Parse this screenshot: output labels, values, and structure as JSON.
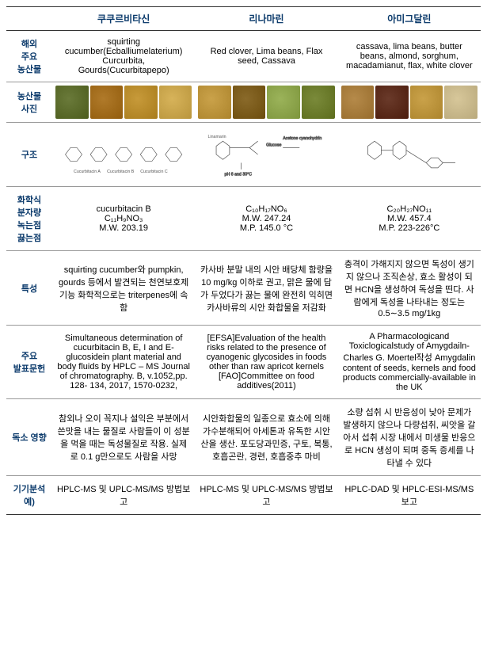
{
  "headers": [
    "",
    "쿠쿠르비타신",
    "리나마린",
    "아미그달린"
  ],
  "row_labels": {
    "overseas": "해외\n주요\n농산물",
    "photo": "농산물\n사진",
    "structure": "구조",
    "chem": "화학식\n분자량\n녹는점\n끓는점",
    "feature": "특성",
    "paper": "주요\n발표문헌",
    "tox": "독소 영향",
    "instr": "기기분석\n예)"
  },
  "overseas": {
    "c1": "squirting cucumber(Ecballiumelaterium) Curcurbita, Gourds(Cucurbitapepo)",
    "c2": "Red clover, Lima beans, Flax seed, Cassava",
    "c3": "cassava, lima beans, butter beans, almond, sorghum, macadamianut, flax, white clover"
  },
  "images": {
    "c1_colors": [
      "#6a7a3a",
      "#b07a2a",
      "#c79a3a",
      "#d7b35a"
    ],
    "c2_colors": [
      "#caa24a",
      "#8a6a2a",
      "#9bb35a",
      "#7a8a3a"
    ],
    "c3_colors": [
      "#b58a4a",
      "#6a3a2a",
      "#caa24a",
      "#d7c79a"
    ]
  },
  "chem": {
    "c1": "cucurbitacin B\nC₁₁H₉NO₃\nM.W. 203.19",
    "c2": "C₁₀H₁₇NO₆\nM.W. 247.24\nM.P. 145.0 °C",
    "c3": "C₂₀H₂₇NO₁₁\nM.W. 457.4\nM.P. 223-226°C"
  },
  "feature": {
    "c1": "squirting cucumber와 pumpkin, gourds 등에서 발견되는 천연보호제 기능 화학적으로는 triterpenes에 속함",
    "c2": "카사바 분말 내의 시안 배당체 함량을 10 mg/kg 이하로 권고, 맑은 물에 담가 두었다가 끓는 물에 완전히 익히면 카사바류의 시안 화합물을 저감화",
    "c3": "충격이 가해지지 않으면 독성이 생기지 않으나 조직손상, 효소 활성이 되면 HCN을 생성하여 독성을 띤다. 사람에게 독성을 나타내는 정도는 0.5∼3.5 mg/1kg"
  },
  "paper": {
    "c1": "Simultaneous determination of cucurbitacin B, E, I and E-glucosidein plant material and body fluids by HPLC – MS Journal of chromatography. B, v.1052,pp. 128- 134, 2017, 1570-0232,",
    "c2": "[EFSA]Evaluation of the health risks related to the presence of cyanogenic glycosides in foods other than raw apricot kernels [FAO]Committee on food additives(2011)",
    "c3": "A Pharmacologicand Toxiclogicalstudy of Amygdailn- Charles G. Moertel작성 Amygdalin content of seeds, kernels and food products commercially-available in the UK"
  },
  "tox": {
    "c1": "참외나 오이 꼭지나 설익은 부분에서 쓴맛을 내는 물질로 사람들이 이 성분을 먹을 때는 독성물질로 작용. 실제로 0.1 g만으로도 사람을 사망",
    "c2": "시안화합물의 일종으로 효소에 의해 가수분해되어 아세톤과 유독한 시안산을 생산. 포도당과민증, 구토, 복통, 호흡곤란, 경련, 호흡중추 마비",
    "c3": "소량 섭취 시 반응성이 낮아 문제가 발생하지 않으나 다량섭취, 씨앗을 갈아서 섭취 시장 내에서 미생물 반응으로 HCN 생성이 되며 중독 증세를 나타낼 수 있다"
  },
  "instr": {
    "c1": "HPLC-MS 및 UPLC-MS/MS 방법보고",
    "c2": "HPLC-MS 및 UPLC-MS/MS 방법보고",
    "c3": "HPLC-DAD 및 HPLC-ESI-MS/MS 보고"
  },
  "style": {
    "header_color": "#0b3a6b",
    "border_color": "#999",
    "outer_border": "#333",
    "fontsize_body": 11,
    "fontsize_header": 12
  }
}
